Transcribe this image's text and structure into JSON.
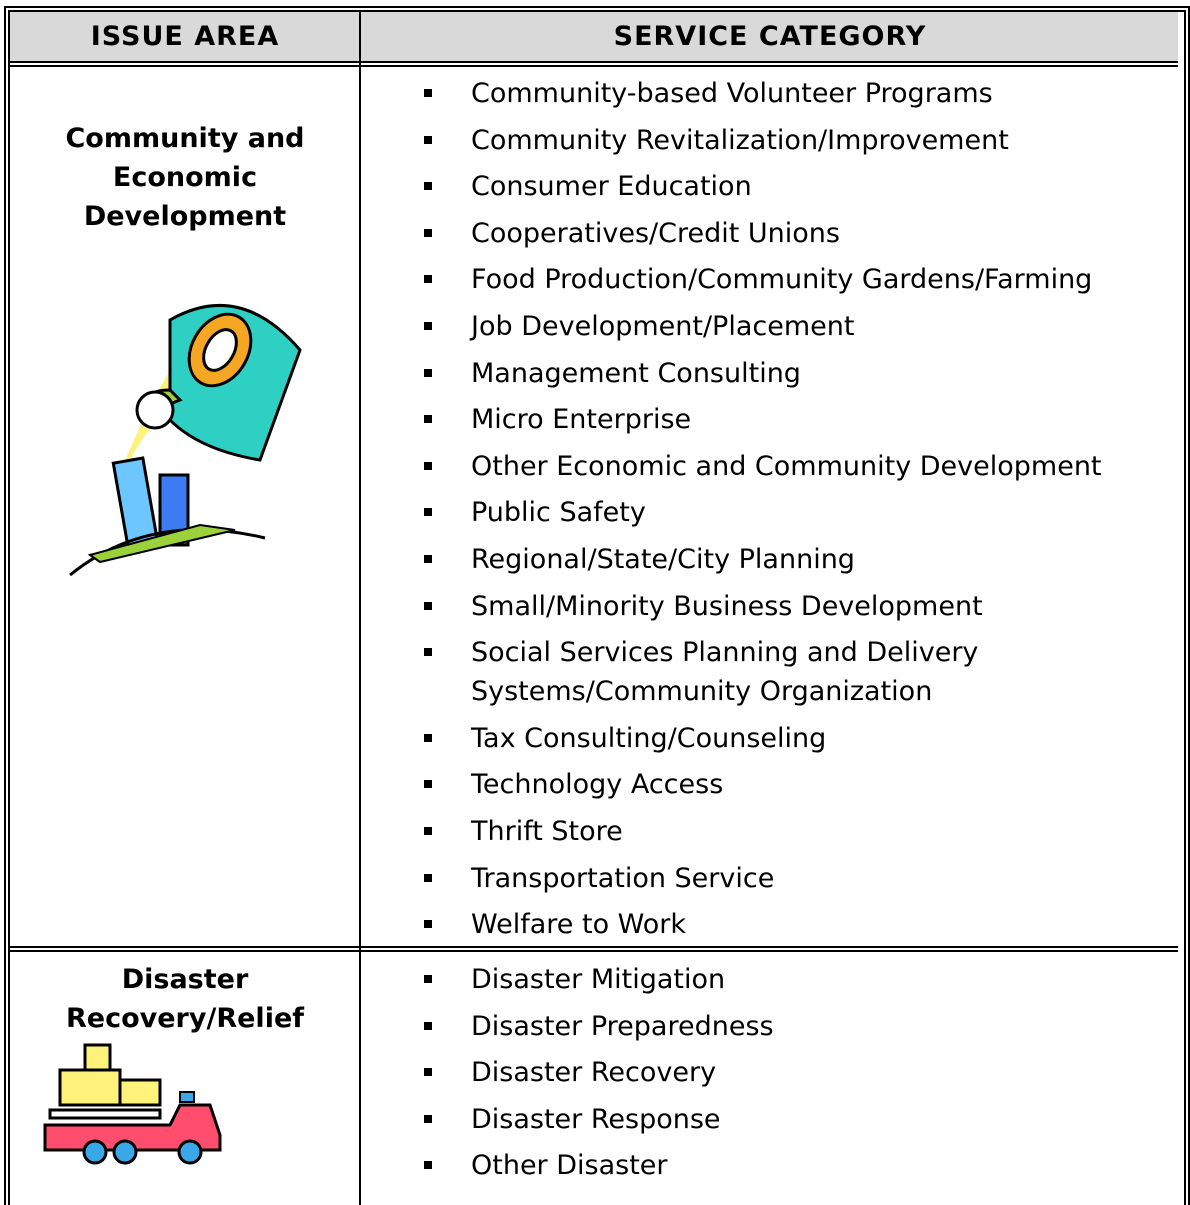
{
  "header": {
    "issue_area": "ISSUE AREA",
    "service_category": "SERVICE CATEGORY"
  },
  "rows": [
    {
      "issue_area": [
        "Community and",
        "Economic",
        "Development"
      ],
      "services": [
        "Community-based Volunteer Programs",
        "Community Revitalization/Improvement",
        "Consumer Education",
        "Cooperatives/Credit Unions",
        "Food Production/Community Gardens/Farming",
        "Job Development/Placement",
        "Management Consulting",
        "Micro Enterprise",
        "Other Economic and Community Development",
        "Public Safety",
        "Regional/State/City Planning",
        "Small/Minority Business Development",
        "Social Services Planning and Delivery Systems/Community Organization",
        "Tax Consulting/Counseling",
        "Technology Access",
        "Thrift Store",
        "Transportation Service",
        "Welfare to Work"
      ]
    },
    {
      "issue_area": [
        "Disaster",
        "Recovery/Relief"
      ],
      "services": [
        "Disaster Mitigation",
        "Disaster Preparedness",
        "Disaster Recovery",
        "Disaster Response",
        "Other Disaster"
      ]
    }
  ]
}
